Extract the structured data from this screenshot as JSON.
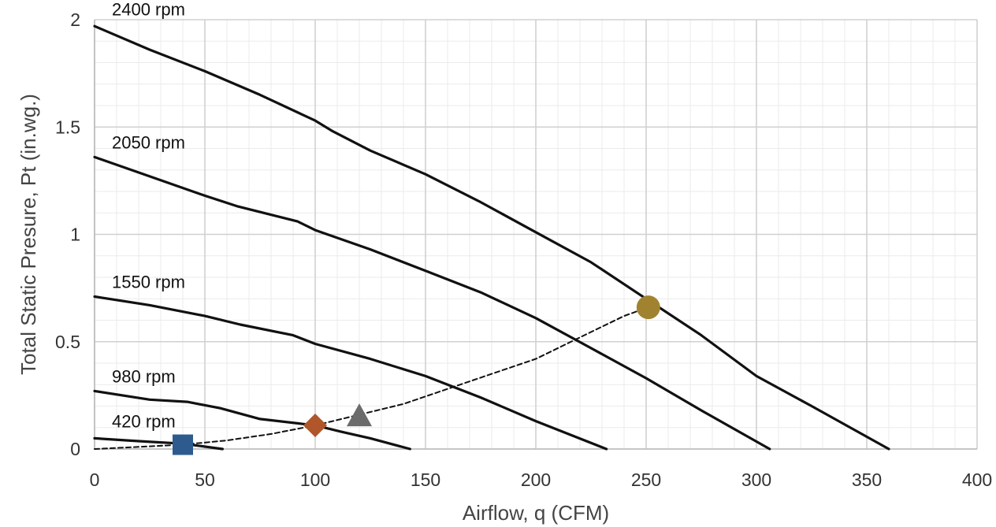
{
  "chart_data": {
    "type": "line",
    "title": "",
    "xlabel": "Airflow, q (CFM)",
    "ylabel": "Total Static Presure, Pt (in.wg.)",
    "xlim": [
      0,
      400
    ],
    "ylim": [
      0,
      2
    ],
    "x_ticks": [
      "0",
      "50",
      "100",
      "150",
      "200",
      "250",
      "300",
      "350",
      "400"
    ],
    "y_ticks": [
      "0",
      "0.5",
      "1",
      "1.5",
      "2"
    ],
    "grid": true,
    "minor_grid": true,
    "legend": "none",
    "series": [
      {
        "name": "2400 rpm",
        "color": "#111111",
        "style": "solid",
        "x": [
          0,
          25,
          50,
          75,
          100,
          108,
          125,
          150,
          175,
          200,
          225,
          250,
          275,
          300,
          325,
          360
        ],
        "y": [
          1.97,
          1.86,
          1.76,
          1.65,
          1.53,
          1.48,
          1.39,
          1.28,
          1.15,
          1.01,
          0.87,
          0.7,
          0.53,
          0.34,
          0.2,
          0.0
        ]
      },
      {
        "name": "2050 rpm",
        "color": "#111111",
        "style": "solid",
        "x": [
          0,
          25,
          50,
          65,
          92,
          100,
          125,
          150,
          175,
          200,
          225,
          250,
          275,
          306
        ],
        "y": [
          1.36,
          1.27,
          1.18,
          1.13,
          1.06,
          1.02,
          0.93,
          0.83,
          0.73,
          0.61,
          0.47,
          0.33,
          0.18,
          0.0
        ]
      },
      {
        "name": "1550 rpm",
        "color": "#111111",
        "style": "solid",
        "x": [
          0,
          25,
          50,
          66,
          90,
          100,
          125,
          150,
          175,
          200,
          232
        ],
        "y": [
          0.71,
          0.67,
          0.62,
          0.58,
          0.53,
          0.49,
          0.42,
          0.34,
          0.24,
          0.13,
          0.0
        ]
      },
      {
        "name": "980 rpm",
        "color": "#111111",
        "style": "solid",
        "x": [
          0,
          25,
          42,
          57,
          75,
          100,
          112,
          125,
          143
        ],
        "y": [
          0.27,
          0.23,
          0.22,
          0.19,
          0.14,
          0.11,
          0.08,
          0.05,
          0.0
        ]
      },
      {
        "name": "420 rpm",
        "color": "#111111",
        "style": "solid",
        "x": [
          0,
          15,
          23,
          40,
          58
        ],
        "y": [
          0.05,
          0.04,
          0.035,
          0.025,
          0.0
        ]
      },
      {
        "name": "",
        "color": "#111111",
        "style": "dashed",
        "x": [
          0,
          20,
          40,
          60,
          80,
          100,
          120,
          140,
          160,
          180,
          200,
          220,
          240,
          251
        ],
        "y": [
          0.0,
          0.01,
          0.02,
          0.04,
          0.07,
          0.11,
          0.16,
          0.21,
          0.28,
          0.35,
          0.42,
          0.52,
          0.62,
          0.66
        ]
      }
    ],
    "markers": [
      {
        "shape": "square",
        "color": "#2e5b8e",
        "x": 40,
        "y": 0.02
      },
      {
        "shape": "diamond",
        "color": "#b0562a",
        "x": 100,
        "y": 0.11
      },
      {
        "shape": "triangle",
        "color": "#6b6b6b",
        "x": 120,
        "y": 0.15
      },
      {
        "shape": "circle",
        "color": "#a1832f",
        "x": 251,
        "y": 0.66
      }
    ],
    "annotations": [
      {
        "text": "2400 rpm",
        "x": 5,
        "y": 2.05
      },
      {
        "text": "2050 rpm",
        "x": 5,
        "y": 1.43
      },
      {
        "text": "1550 rpm",
        "x": 5,
        "y": 0.78
      },
      {
        "text": "980 rpm",
        "x": 5,
        "y": 0.34
      },
      {
        "text": "420 rpm",
        "x": 5,
        "y": 0.13
      }
    ],
    "colors": {
      "grid_major": "#d0d0d0",
      "grid_minor": "#ebebeb",
      "axis": "#bbbbbb"
    }
  }
}
